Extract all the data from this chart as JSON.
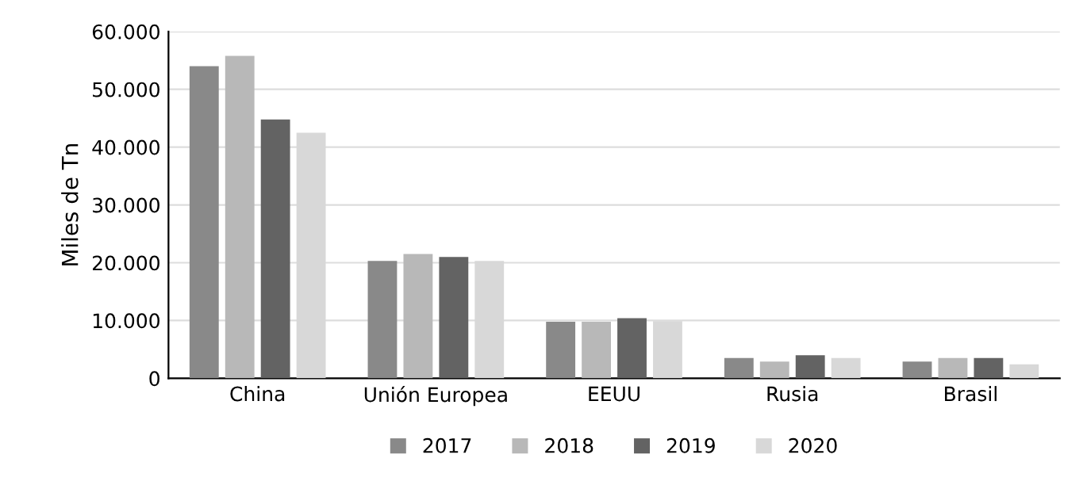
{
  "chart_data": {
    "type": "bar",
    "ylabel": "Miles de Tn",
    "categories": [
      "China",
      "Unión Europea",
      "EEUU",
      "Rusia",
      "Brasil"
    ],
    "series": [
      {
        "name": "2017",
        "color": "#898989",
        "values": [
          54000,
          20300,
          9800,
          3500,
          2900
        ]
      },
      {
        "name": "2018",
        "color": "#b8b8b8",
        "values": [
          55800,
          21500,
          9800,
          2900,
          3500
        ]
      },
      {
        "name": "2019",
        "color": "#636363",
        "values": [
          44800,
          21000,
          10400,
          4000,
          3500
        ]
      },
      {
        "name": "2020",
        "color": "#d8d8d8",
        "values": [
          42500,
          20300,
          9900,
          3500,
          2400
        ]
      }
    ],
    "ylim": [
      0,
      60000
    ],
    "yticks": [
      0,
      {
        "value": 10000,
        "label": "10.000"
      },
      {
        "value": 20000,
        "label": "20.000"
      },
      {
        "value": 30000,
        "label": "30.000"
      },
      {
        "value": 40000,
        "label": "40.000"
      },
      {
        "value": 50000,
        "label": "50.000"
      },
      {
        "value": 60000,
        "label": "60.000"
      }
    ],
    "grid": "y",
    "legend": "bottom"
  }
}
